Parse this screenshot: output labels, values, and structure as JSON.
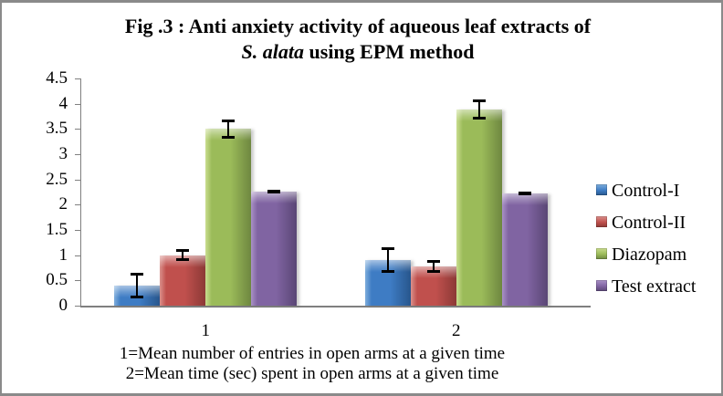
{
  "figure": {
    "title_line1": "Fig .3 : Anti anxiety activity of aqueous leaf extracts of",
    "title_line2_italic": "S. alata",
    "title_line2_rest": " using EPM method"
  },
  "footnotes": {
    "line1": "1=Mean number of entries in open arms at a given time",
    "line2": "2=Mean time (sec) spent in open arms at a given time"
  },
  "chart_data": {
    "type": "bar",
    "title": "Fig .3 : Anti anxiety activity of aqueous leaf extracts of S. alata using EPM method",
    "categories": [
      "1",
      "2"
    ],
    "series": [
      {
        "name": "Control-I",
        "values": [
          0.4,
          0.9
        ],
        "errors": [
          0.25,
          0.25
        ],
        "color": "#3E7CC4",
        "color_light": "#7FAEDC",
        "color_dark": "#28568C"
      },
      {
        "name": "Control-II",
        "values": [
          1.0,
          0.78
        ],
        "errors": [
          0.12,
          0.13
        ],
        "color": "#C0504D",
        "color_light": "#DA918C",
        "color_dark": "#8C3936"
      },
      {
        "name": "Diazopam",
        "values": [
          3.5,
          3.88
        ],
        "errors": [
          0.19,
          0.2
        ],
        "color": "#9BBB59",
        "color_light": "#C9DD8F",
        "color_dark": "#6E8740"
      },
      {
        "name": "Test extract",
        "values": [
          2.26,
          2.22
        ],
        "errors": [
          0.03,
          0.04
        ],
        "color": "#8064A2",
        "color_light": "#A991C6",
        "color_dark": "#5A4675"
      }
    ],
    "ylim": [
      0,
      4.5
    ],
    "ytick_step": 0.5,
    "yticks": [
      "0",
      "0.5",
      "1",
      "1.5",
      "2",
      "2.5",
      "3",
      "3.5",
      "4",
      "4.5"
    ],
    "xticks": [
      "1",
      "2"
    ],
    "grid": false,
    "legend_position": "right",
    "legend_labels": [
      "Control-I",
      "Control-II",
      "Diazopam",
      "Test extract"
    ],
    "axis_color": "#808080",
    "error_bar_color": "#000000",
    "xlabel": "",
    "ylabel": ""
  }
}
